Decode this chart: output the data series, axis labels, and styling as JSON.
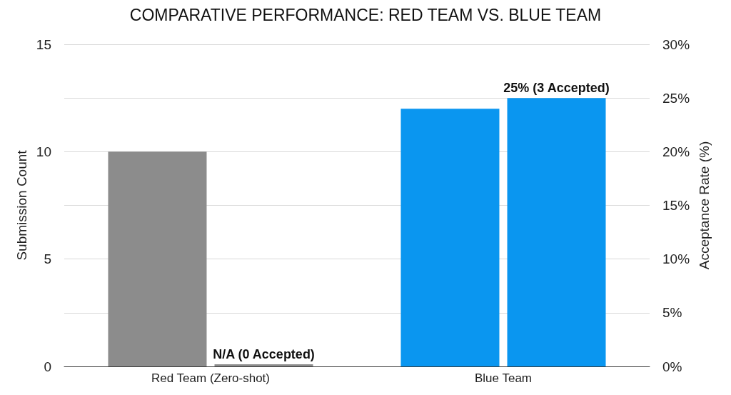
{
  "chart_data": {
    "type": "bar",
    "title": "COMPARATIVE PERFORMANCE: RED TEAM VS. BLUE TEAM",
    "categories": [
      "Red Team (Zero-shot)",
      "Blue Team"
    ],
    "ylabel": "Submission Count",
    "y2label": "Acceptance Rate (%)",
    "series": [
      {
        "colors": [
          "#8c8c8c",
          "#0a96f0"
        ],
        "values": [
          10,
          12
        ]
      },
      {
        "colors": [
          "#8c8c8c",
          "#0a96f0"
        ],
        "values": [
          0,
          25
        ],
        "axis": "y2",
        "value_labels": [
          "N/A (0 Accepted)",
          "25% (3 Accepted)"
        ]
      }
    ],
    "ylim": [
      0,
      15
    ],
    "yticks": [
      0,
      5,
      10,
      15
    ],
    "y2lim": [
      0,
      30
    ],
    "y2ticks": [
      {
        "value": 0,
        "label": "0%"
      },
      {
        "value": 5,
        "label": "5%"
      },
      {
        "value": 10,
        "label": "10%"
      },
      {
        "value": 15,
        "label": "15%"
      },
      {
        "value": 20,
        "label": "20%"
      },
      {
        "value": 25,
        "label": "25%"
      },
      {
        "value": 30,
        "label": "30%"
      }
    ],
    "grid": true
  }
}
